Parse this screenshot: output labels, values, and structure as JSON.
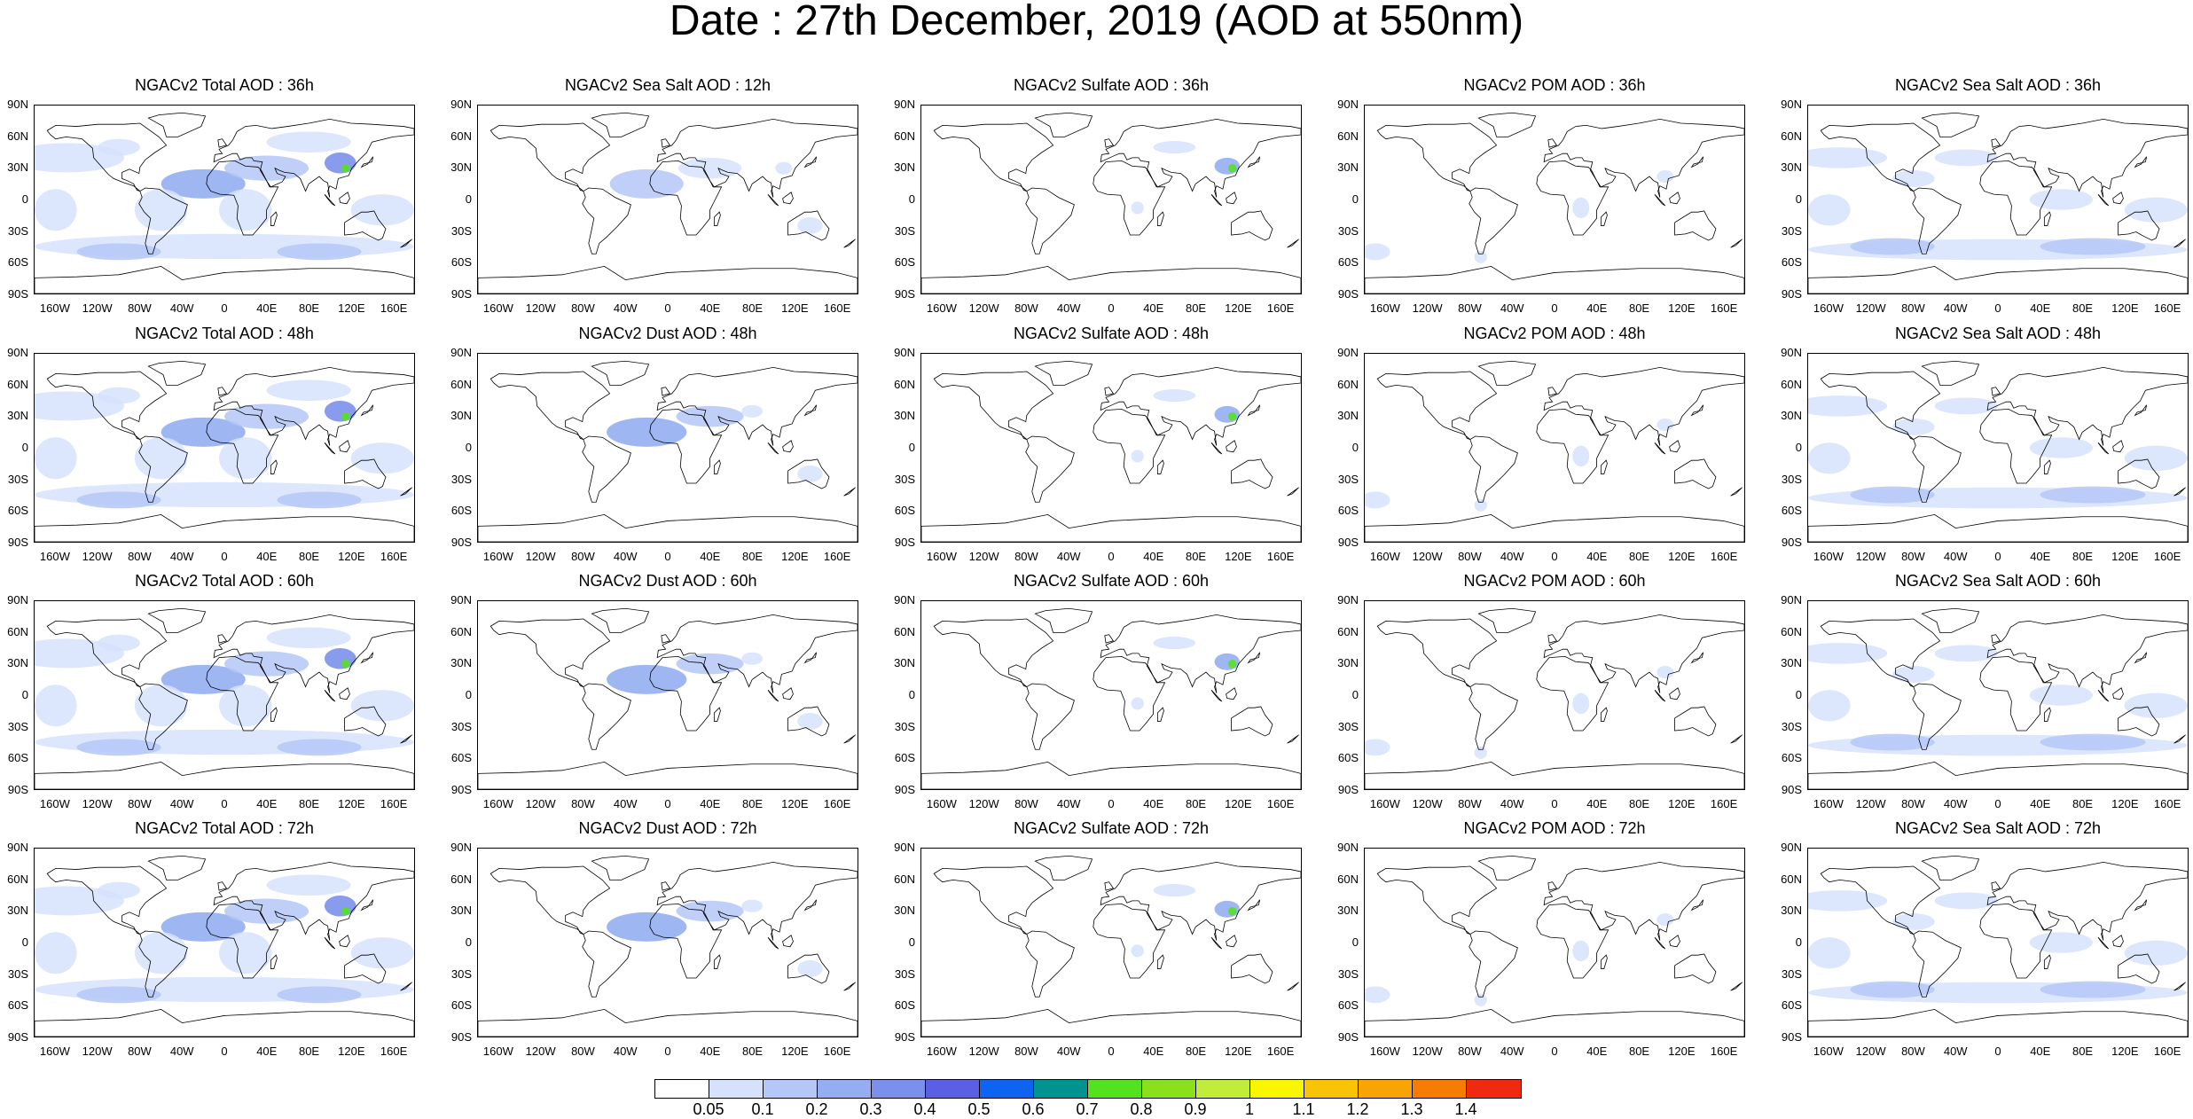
{
  "title": "Date : 27th December, 2019 (AOD at 550nm)",
  "lat_ticks": [
    "90N",
    "60N",
    "30N",
    "0",
    "30S",
    "60S",
    "90S"
  ],
  "lon_ticks": [
    "160W",
    "120W",
    "80W",
    "40W",
    "0",
    "40E",
    "80E",
    "120E",
    "160E"
  ],
  "panels": [
    [
      "NGACv2 Total AOD : 36h",
      "NGACv2 Sea Salt  AOD : 12h",
      "NGACv2 Sulfate AOD : 36h",
      "NGACv2 POM AOD : 36h",
      "NGACv2 Sea Salt AOD : 36h"
    ],
    [
      "NGACv2 Total AOD : 48h",
      "NGACv2 Dust AOD : 48h",
      "NGACv2 Sulfate AOD : 48h",
      "NGACv2 POM AOD : 48h",
      "NGACv2 Sea Salt AOD : 48h"
    ],
    [
      "NGACv2 Total AOD : 60h",
      "NGACv2 Dust AOD : 60h",
      "NGACv2 Sulfate AOD : 60h",
      "NGACv2 POM AOD : 60h",
      "NGACv2 Sea Salt AOD : 60h"
    ],
    [
      "NGACv2 Total AOD : 72h",
      "NGACv2 Dust AOD : 72h",
      "NGACv2 Sulfate AOD : 72h",
      "NGACv2 POM AOD : 72h",
      "NGACv2 Sea Salt  AOD : 72h"
    ]
  ],
  "colorbar": {
    "labels": [
      "0.05",
      "0.1",
      "0.2",
      "0.3",
      "0.4",
      "0.5",
      "0.6",
      "0.7",
      "0.8",
      "0.9",
      "1",
      "1.1",
      "1.2",
      "1.3",
      "1.4"
    ],
    "colors": [
      "#ffffff",
      "#d6e2fb",
      "#b4c7f6",
      "#94aef1",
      "#7b90ea",
      "#5a5fe3",
      "#0e63f0",
      "#00938f",
      "#54e21e",
      "#8ae01a",
      "#c2ec3a",
      "#f8f700",
      "#f9c405",
      "#f8a405",
      "#f77c04",
      "#ef2a10"
    ]
  },
  "colors": {
    "land_outline": "#000000",
    "aerosol_light": "#d6e2fb",
    "aerosol_mid": "#a9bdf3",
    "aerosol_dark": "#7b90ea",
    "aerosol_hot": "#54e21e"
  }
}
